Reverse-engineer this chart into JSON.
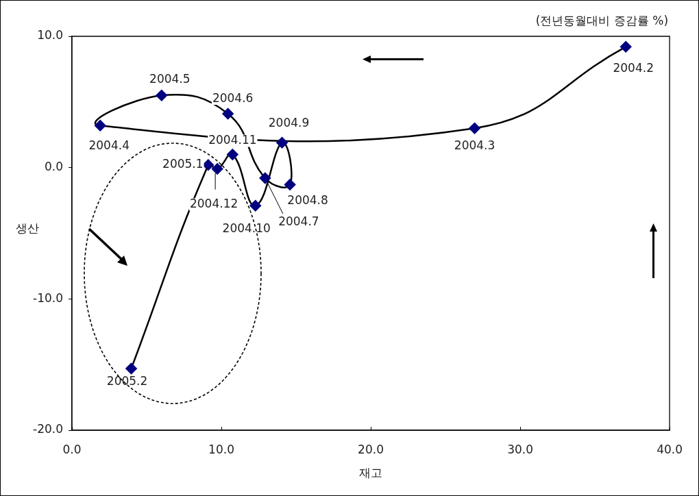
{
  "chart_data": {
    "type": "line",
    "title": "(전년동월대비 증감률 %)",
    "xlabel": "재고",
    "ylabel": "생산",
    "series": [
      {
        "color": "#000080",
        "x": [
          37.07,
          26.95,
          1.89,
          6.0,
          10.44,
          12.93,
          14.59,
          14.06,
          12.28,
          10.75,
          9.73,
          9.12,
          3.97
        ],
        "values": [
          9.2,
          3.0,
          3.2,
          5.5,
          4.1,
          -0.8,
          -1.3,
          1.9,
          -2.9,
          1.0,
          -0.1,
          0.2,
          -15.3
        ]
      }
    ],
    "xlim": [
      0,
      40
    ],
    "xticks": [
      {
        "value": 0,
        "label": "0.0"
      },
      {
        "value": 10,
        "label": "10.0"
      },
      {
        "value": 20,
        "label": "20.0"
      },
      {
        "value": 30,
        "label": "30.0"
      },
      {
        "value": 40,
        "label": "40.0"
      }
    ],
    "ylim": [
      -20,
      10
    ],
    "yticks": [
      {
        "value": -20,
        "label": "-20.0"
      },
      {
        "value": -10,
        "label": "-10.0"
      },
      {
        "value": 0,
        "label": "0.0"
      },
      {
        "value": 10,
        "label": "10.0"
      }
    ],
    "marker": "diamond",
    "grid": false,
    "legend": false,
    "annotations": [
      {
        "text": "2004.2",
        "x": 37.07,
        "y": 9.2
      },
      {
        "text": "2004.3",
        "x": 26.95,
        "y": 3.0
      },
      {
        "text": "2004.4",
        "x": 1.89,
        "y": 3.2
      },
      {
        "text": "2004.5",
        "x": 6.0,
        "y": 5.5
      },
      {
        "text": "2004.6",
        "x": 10.44,
        "y": 4.1
      },
      {
        "text": "2004.7",
        "x": 12.93,
        "y": -0.8
      },
      {
        "text": "2004.8",
        "x": 14.59,
        "y": -1.3
      },
      {
        "text": "2004.9",
        "x": 14.06,
        "y": 1.9
      },
      {
        "text": "2004.10",
        "x": 12.28,
        "y": -2.9
      },
      {
        "text": "2004.11",
        "x": 10.75,
        "y": 1.0
      },
      {
        "text": "2004.12",
        "x": 9.73,
        "y": -0.1
      },
      {
        "text": "2005.1",
        "x": 9.12,
        "y": 0.2
      },
      {
        "text": "2005.2",
        "x": 3.97,
        "y": -15.3
      }
    ]
  }
}
